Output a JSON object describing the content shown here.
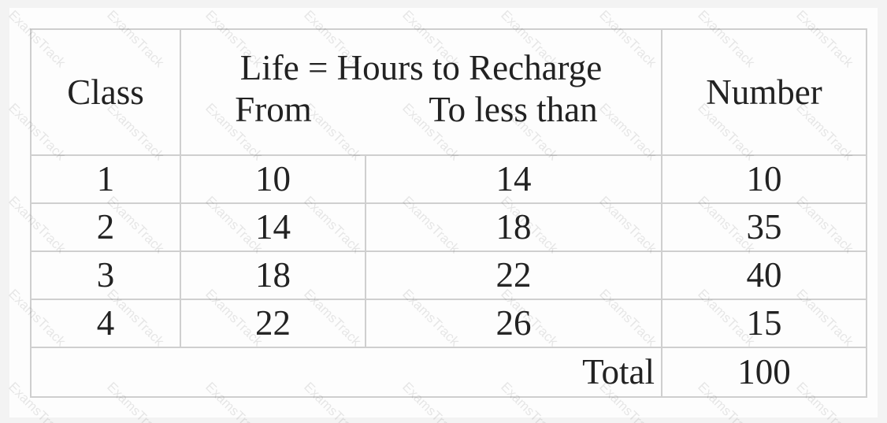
{
  "table": {
    "headers": {
      "class": "Class",
      "life": "Life = Hours to Recharge",
      "from": "From",
      "to": "To less than",
      "number": "Number"
    },
    "rows": [
      {
        "class": "1",
        "from": "10",
        "to": "14",
        "number": "10"
      },
      {
        "class": "2",
        "from": "14",
        "to": "18",
        "number": "35"
      },
      {
        "class": "3",
        "from": "18",
        "to": "22",
        "number": "40"
      },
      {
        "class": "4",
        "from": "22",
        "to": "26",
        "number": "15"
      }
    ],
    "total_label": "Total",
    "total_value": "100"
  },
  "watermark": "ExamsTrack"
}
